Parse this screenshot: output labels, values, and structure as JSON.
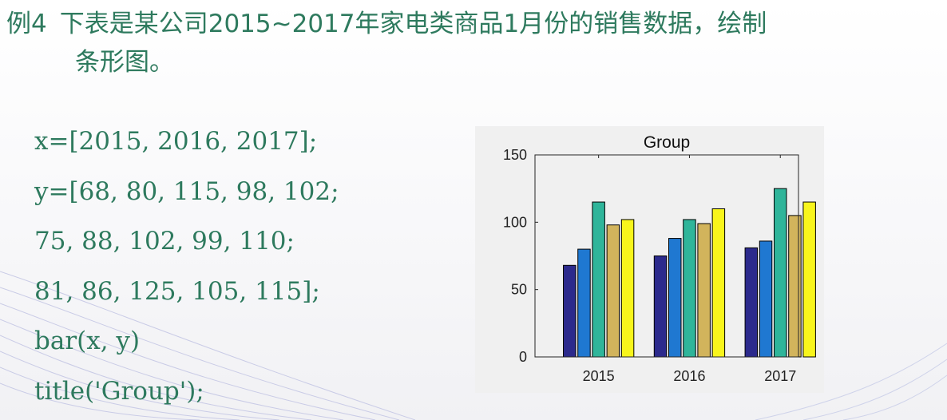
{
  "heading": {
    "number": "例4",
    "line1": "下表是某公司2015~2017年家电类商品1月份的销售数据，绘制",
    "line2": "条形图。"
  },
  "code": [
    "x=[2015, 2016, 2017];",
    "y=[68, 80, 115, 98, 102;",
    "75, 88, 102, 99, 110;",
    "81, 86, 125, 105, 115];",
    "bar(x, y)",
    "title('Group');"
  ],
  "chart_data": {
    "type": "bar",
    "title": "Group",
    "categories": [
      "2015",
      "2016",
      "2017"
    ],
    "series": [
      {
        "values": [
          68,
          75,
          81
        ]
      },
      {
        "values": [
          80,
          88,
          86
        ]
      },
      {
        "values": [
          115,
          102,
          125
        ]
      },
      {
        "values": [
          98,
          99,
          105
        ]
      },
      {
        "values": [
          102,
          110,
          115
        ]
      }
    ],
    "series_colors": [
      "#2c2a8c",
      "#1f78d1",
      "#2fb59a",
      "#d2b45c",
      "#f8f51c"
    ],
    "ylim": [
      0,
      150
    ],
    "yticks": [
      "0",
      "50",
      "100",
      "150"
    ],
    "grid": false,
    "legend": "none"
  }
}
